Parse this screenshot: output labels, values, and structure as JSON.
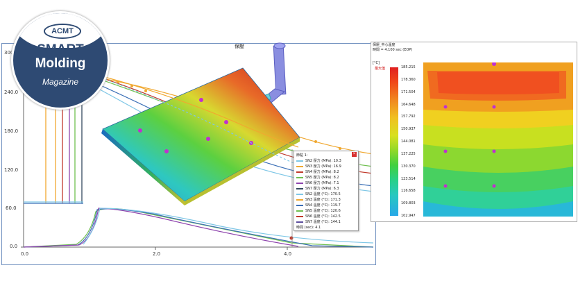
{
  "badge": {
    "top_word": "ACMT",
    "line1": "SMART",
    "line2": "Molding",
    "line3": "Magazine"
  },
  "left_panel": {
    "title": "保壓",
    "y_ticks": [
      "300.0",
      "240.0",
      "180.0",
      "120.0",
      "60.0",
      "0.0"
    ],
    "x_ticks": [
      "0.0",
      "2.0",
      "4.0"
    ],
    "legend_header": "節點 1:",
    "legend_items": [
      {
        "label": "SN2 壓力 (MPa): 10.3",
        "color": "#7fc7e6"
      },
      {
        "label": "SN3 壓力 (MPa): 16.9",
        "color": "#f0a830"
      },
      {
        "label": "SN4 壓力 (MPa): 8.2",
        "color": "#c0392b"
      },
      {
        "label": "SN5 壓力 (MPa): 8.2",
        "color": "#6fbf4f"
      },
      {
        "label": "SN6 壓力 (MPa): 7.1",
        "color": "#8e44ad"
      },
      {
        "label": "SN7 壓力 (MPa): 6.3",
        "color": "#34495e"
      },
      {
        "label": "SN2 溫度 (°C): 170.5",
        "color": "#7fc7e6"
      },
      {
        "label": "SN3 溫度 (°C): 171.3",
        "color": "#f0a830"
      },
      {
        "label": "SN4 溫度 (°C): 119.7",
        "color": "#3b6fb6"
      },
      {
        "label": "SN5 溫度 (°C): 120.6",
        "color": "#6fbf4f"
      },
      {
        "label": "SN6 溫度 (°C): 142.5",
        "color": "#c0392b"
      },
      {
        "label": "SN7 溫度 (°C): 144.1",
        "color": "#5b4e9e"
      }
    ],
    "legend_footer": "時間 (sec): 4.1"
  },
  "right_panel": {
    "title": "保壓_中心溫度",
    "subtitle": "時間 = 4.100 sec (EOP)",
    "unit": "[°C]",
    "max_tag": "最大值",
    "scale_values": [
      "185.215",
      "178.360",
      "171.504",
      "164.648",
      "157.792",
      "150.937",
      "144.081",
      "137.225",
      "130.370",
      "123.514",
      "116.658",
      "109.803",
      "102.947"
    ]
  },
  "colors": {
    "frame_border": "#6f8fbf",
    "badge_bg": "#2e4a73",
    "scale_top": "#e02020",
    "scale_bottom": "#28a8e8"
  }
}
